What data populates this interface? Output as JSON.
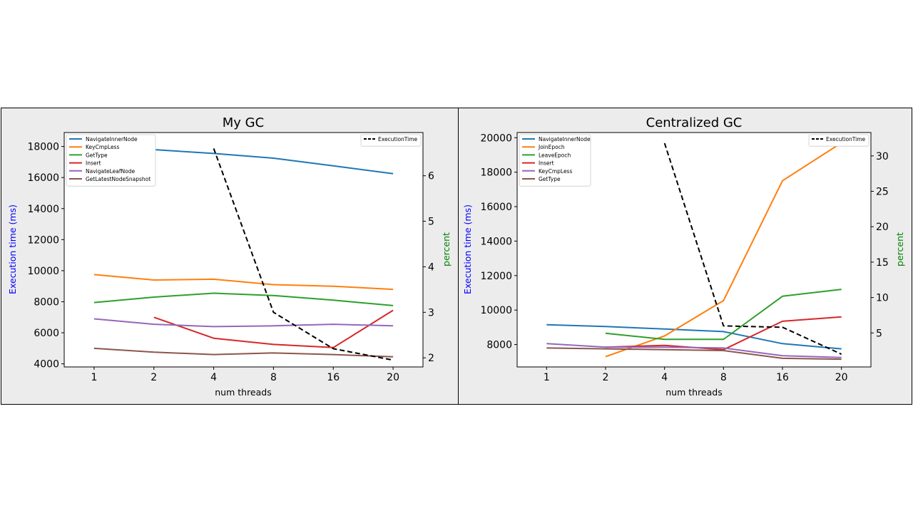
{
  "chart_data": [
    {
      "type": "line",
      "title": "My GC",
      "xlabel": "num threads",
      "ylabel": "Execution time (ms)",
      "y2label": "percent",
      "categories": [
        "1",
        "2",
        "4",
        "8",
        "16",
        "20"
      ],
      "ylim": [
        3800,
        18900
      ],
      "yticks": [
        4000,
        6000,
        8000,
        10000,
        12000,
        14000,
        16000,
        18000
      ],
      "y2lim": [
        1.8,
        6.95
      ],
      "y2ticks": [
        2,
        3,
        4,
        5,
        6
      ],
      "legend_left": "top-left",
      "legend_right": "top-right",
      "grid": false,
      "series": [
        {
          "name": "NavigateInnerNode",
          "color": "#1f77b4",
          "values": [
            18100,
            17800,
            17550,
            17250,
            16750,
            16250
          ]
        },
        {
          "name": "KeyCmpLess",
          "color": "#ff7f0e",
          "values": [
            9750,
            9400,
            9450,
            9100,
            9000,
            8800
          ]
        },
        {
          "name": "GetType",
          "color": "#2ca02c",
          "values": [
            7950,
            8300,
            8550,
            8400,
            8100,
            7750
          ]
        },
        {
          "name": "Insert",
          "color": "#d62728",
          "values": [
            null,
            7000,
            5650,
            5250,
            5050,
            7450
          ]
        },
        {
          "name": "NavigateLeafNode",
          "color": "#9467bd",
          "values": [
            6900,
            6550,
            6400,
            6450,
            6550,
            6450
          ]
        },
        {
          "name": "GetLatestNodeSnapshot",
          "color": "#8c564b",
          "values": [
            5000,
            4750,
            4600,
            4700,
            4600,
            4450
          ]
        }
      ],
      "series_right": [
        {
          "name": "ExecutionTime",
          "color": "#000000",
          "dashed": true,
          "values": [
            null,
            null,
            6.6,
            3.0,
            2.2,
            1.95
          ]
        }
      ]
    },
    {
      "type": "line",
      "title": "Centralized GC",
      "xlabel": "num threads",
      "ylabel": "Execution time (ms)",
      "y2label": "percent",
      "categories": [
        "1",
        "2",
        "4",
        "8",
        "16",
        "20"
      ],
      "ylim": [
        6700,
        20300
      ],
      "yticks": [
        8000,
        10000,
        12000,
        14000,
        16000,
        18000,
        20000
      ],
      "y2lim": [
        0.2,
        33.3
      ],
      "y2ticks": [
        5,
        10,
        15,
        20,
        25,
        30
      ],
      "legend_left": "top-left",
      "legend_right": "top-right",
      "grid": false,
      "series": [
        {
          "name": "NavigateInnerNode",
          "color": "#1f77b4",
          "values": [
            9150,
            9050,
            8900,
            8750,
            8050,
            7750
          ]
        },
        {
          "name": "JoinEpoch",
          "color": "#ff7f0e",
          "values": [
            null,
            7300,
            8500,
            10550,
            17500,
            19700
          ]
        },
        {
          "name": "LeaveEpoch",
          "color": "#2ca02c",
          "values": [
            null,
            8650,
            8300,
            8300,
            10800,
            11200
          ]
        },
        {
          "name": "Insert",
          "color": "#d62728",
          "values": [
            null,
            7850,
            7950,
            7700,
            9350,
            9600
          ]
        },
        {
          "name": "KeyCmpLess",
          "color": "#9467bd",
          "values": [
            8050,
            7850,
            7850,
            7800,
            7350,
            7250
          ]
        },
        {
          "name": "GetType",
          "color": "#8c564b",
          "values": [
            7800,
            7750,
            7700,
            7650,
            7200,
            7150
          ]
        }
      ],
      "series_right": [
        {
          "name": "ExecutionTime",
          "color": "#000000",
          "dashed": true,
          "values": [
            null,
            null,
            31.8,
            6.0,
            5.8,
            2.0
          ]
        }
      ]
    }
  ]
}
